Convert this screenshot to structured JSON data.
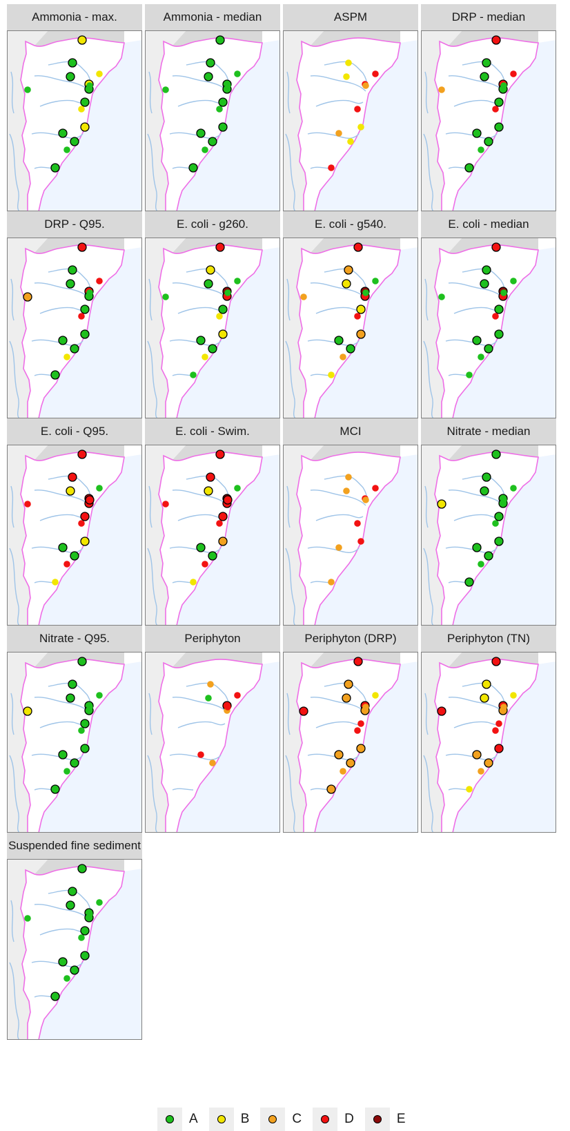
{
  "grades": [
    {
      "label": "A",
      "color": "#1ec01e"
    },
    {
      "label": "B",
      "color": "#f2e600"
    },
    {
      "label": "C",
      "color": "#f2a11f"
    },
    {
      "label": "D",
      "color": "#f21212"
    },
    {
      "label": "E",
      "color": "#8b0a0a"
    }
  ],
  "panels": [
    {
      "title": "Ammonia - max.",
      "sites": [
        {
          "s": 1,
          "g": "B"
        },
        {
          "s": 2,
          "g": "A"
        },
        {
          "s": 3,
          "g": "A"
        },
        {
          "s": 4,
          "g": "B",
          "ring": 0
        },
        {
          "s": 5,
          "g": "A",
          "ring": 0
        },
        {
          "s": 6,
          "g": "B"
        },
        {
          "s": 7,
          "g": "A"
        },
        {
          "s": 8,
          "g": "A",
          "ring": 0
        },
        {
          "s": 9,
          "g": "A"
        },
        {
          "s": 10,
          "g": "B"
        },
        {
          "s": 11,
          "g": "B",
          "ring": 0
        },
        {
          "s": 12,
          "g": "A"
        },
        {
          "s": 13,
          "g": "A"
        },
        {
          "s": 14,
          "g": "A",
          "ring": 0
        },
        {
          "s": 15,
          "g": "A"
        }
      ]
    },
    {
      "title": "Ammonia - median",
      "sites": [
        {
          "s": 1,
          "g": "A"
        },
        {
          "s": 2,
          "g": "A"
        },
        {
          "s": 3,
          "g": "A"
        },
        {
          "s": 4,
          "g": "A",
          "ring": 0
        },
        {
          "s": 5,
          "g": "A",
          "ring": 0
        },
        {
          "s": 6,
          "g": "A"
        },
        {
          "s": 7,
          "g": "A"
        },
        {
          "s": 8,
          "g": "A",
          "ring": 0
        },
        {
          "s": 9,
          "g": "A"
        },
        {
          "s": 10,
          "g": "A"
        },
        {
          "s": 11,
          "g": "A",
          "ring": 0
        },
        {
          "s": 12,
          "g": "A"
        },
        {
          "s": 13,
          "g": "A"
        },
        {
          "s": 14,
          "g": "A",
          "ring": 0
        },
        {
          "s": 15,
          "g": "A"
        }
      ]
    },
    {
      "title": "ASPM",
      "sites": [
        {
          "s": 2,
          "g": "B",
          "ring": 0
        },
        {
          "s": 3,
          "g": "B",
          "ring": 0
        },
        {
          "s": 4,
          "g": "D",
          "ring": 0
        },
        {
          "s": 6,
          "g": "D",
          "ring": 0
        },
        {
          "s": 8,
          "g": "C",
          "ring": 0
        },
        {
          "s": 10,
          "g": "B",
          "ring": 0
        },
        {
          "s": 11,
          "g": "D",
          "ring": 0
        },
        {
          "s": 12,
          "g": "C",
          "ring": 0
        },
        {
          "s": 13,
          "g": "B",
          "ring": 0
        },
        {
          "s": 15,
          "g": "D",
          "ring": 0
        }
      ]
    },
    {
      "title": "DRP - median",
      "sites": [
        {
          "s": 1,
          "g": "D"
        },
        {
          "s": 2,
          "g": "A"
        },
        {
          "s": 3,
          "g": "A"
        },
        {
          "s": 4,
          "g": "D",
          "ring": 0
        },
        {
          "s": 5,
          "g": "C",
          "ring": 0
        },
        {
          "s": 6,
          "g": "D"
        },
        {
          "s": 7,
          "g": "A"
        },
        {
          "s": 8,
          "g": "A",
          "ring": 0
        },
        {
          "s": 9,
          "g": "A"
        },
        {
          "s": 10,
          "g": "A"
        },
        {
          "s": 11,
          "g": "D",
          "ring": 0
        },
        {
          "s": 12,
          "g": "A"
        },
        {
          "s": 13,
          "g": "A"
        },
        {
          "s": 14,
          "g": "A",
          "ring": 0
        },
        {
          "s": 15,
          "g": "A"
        }
      ]
    },
    {
      "title": "DRP - Q95.",
      "sites": [
        {
          "s": 1,
          "g": "D"
        },
        {
          "s": 2,
          "g": "A"
        },
        {
          "s": 3,
          "g": "A"
        },
        {
          "s": 4,
          "g": "D",
          "ring": 0
        },
        {
          "s": 5,
          "g": "C"
        },
        {
          "s": 6,
          "g": "D"
        },
        {
          "s": 7,
          "g": "A"
        },
        {
          "s": 8,
          "g": "A",
          "ring": 0
        },
        {
          "s": 9,
          "g": "A"
        },
        {
          "s": 10,
          "g": "A"
        },
        {
          "s": 11,
          "g": "D",
          "ring": 0
        },
        {
          "s": 12,
          "g": "A"
        },
        {
          "s": 13,
          "g": "A"
        },
        {
          "s": 14,
          "g": "B",
          "ring": 0
        },
        {
          "s": 15,
          "g": "A"
        }
      ]
    },
    {
      "title": "E. coli - g260.",
      "sites": [
        {
          "s": 1,
          "g": "D"
        },
        {
          "s": 2,
          "g": "B"
        },
        {
          "s": 3,
          "g": "A"
        },
        {
          "s": 4,
          "g": "A",
          "ring": 0
        },
        {
          "s": 5,
          "g": "A",
          "ring": 0
        },
        {
          "s": 6,
          "g": "E"
        },
        {
          "s": 7,
          "g": "D"
        },
        {
          "s": 8,
          "g": "A",
          "ring": 0
        },
        {
          "s": 9,
          "g": "A"
        },
        {
          "s": 10,
          "g": "B"
        },
        {
          "s": 11,
          "g": "B",
          "ring": 0
        },
        {
          "s": 12,
          "g": "A"
        },
        {
          "s": 13,
          "g": "A"
        },
        {
          "s": 14,
          "g": "B",
          "ring": 0
        },
        {
          "s": 15,
          "g": "A",
          "ring": 0
        }
      ]
    },
    {
      "title": "E. coli - g540.",
      "sites": [
        {
          "s": 1,
          "g": "D"
        },
        {
          "s": 2,
          "g": "C"
        },
        {
          "s": 3,
          "g": "B"
        },
        {
          "s": 4,
          "g": "A",
          "ring": 0
        },
        {
          "s": 5,
          "g": "C",
          "ring": 0
        },
        {
          "s": 6,
          "g": "E"
        },
        {
          "s": 7,
          "g": "D"
        },
        {
          "s": 8,
          "g": "A",
          "ring": 0
        },
        {
          "s": 9,
          "g": "B"
        },
        {
          "s": 10,
          "g": "C"
        },
        {
          "s": 11,
          "g": "D",
          "ring": 0
        },
        {
          "s": 12,
          "g": "A"
        },
        {
          "s": 13,
          "g": "A"
        },
        {
          "s": 14,
          "g": "C",
          "ring": 0
        },
        {
          "s": 15,
          "g": "B",
          "ring": 0
        }
      ]
    },
    {
      "title": "E. coli - median",
      "sites": [
        {
          "s": 1,
          "g": "D"
        },
        {
          "s": 2,
          "g": "A"
        },
        {
          "s": 3,
          "g": "A"
        },
        {
          "s": 4,
          "g": "A",
          "ring": 0
        },
        {
          "s": 5,
          "g": "A",
          "ring": 0
        },
        {
          "s": 6,
          "g": "E"
        },
        {
          "s": 7,
          "g": "D"
        },
        {
          "s": 8,
          "g": "A",
          "ring": 0
        },
        {
          "s": 9,
          "g": "A"
        },
        {
          "s": 10,
          "g": "A"
        },
        {
          "s": 11,
          "g": "D",
          "ring": 0
        },
        {
          "s": 12,
          "g": "A"
        },
        {
          "s": 13,
          "g": "A"
        },
        {
          "s": 14,
          "g": "A",
          "ring": 0
        },
        {
          "s": 15,
          "g": "A",
          "ring": 0
        }
      ]
    },
    {
      "title": "E. coli - Q95.",
      "sites": [
        {
          "s": 1,
          "g": "D"
        },
        {
          "s": 2,
          "g": "D"
        },
        {
          "s": 3,
          "g": "B"
        },
        {
          "s": 4,
          "g": "A",
          "ring": 0
        },
        {
          "s": 5,
          "g": "D",
          "ring": 0
        },
        {
          "s": 6,
          "g": "D"
        },
        {
          "s": 7,
          "g": "D"
        },
        {
          "s": 8,
          "g": "D"
        },
        {
          "s": 9,
          "g": "D"
        },
        {
          "s": 10,
          "g": "B"
        },
        {
          "s": 11,
          "g": "D",
          "ring": 0
        },
        {
          "s": 12,
          "g": "A"
        },
        {
          "s": 13,
          "g": "A"
        },
        {
          "s": 14,
          "g": "D",
          "ring": 0
        },
        {
          "s": 15,
          "g": "B",
          "ring": 0
        }
      ]
    },
    {
      "title": "E. coli - Swim.",
      "sites": [
        {
          "s": 1,
          "g": "D"
        },
        {
          "s": 2,
          "g": "D"
        },
        {
          "s": 3,
          "g": "B"
        },
        {
          "s": 4,
          "g": "A",
          "ring": 0
        },
        {
          "s": 5,
          "g": "D",
          "ring": 0
        },
        {
          "s": 6,
          "g": "E"
        },
        {
          "s": 7,
          "g": "D"
        },
        {
          "s": 8,
          "g": "D"
        },
        {
          "s": 9,
          "g": "D"
        },
        {
          "s": 10,
          "g": "C"
        },
        {
          "s": 11,
          "g": "D",
          "ring": 0
        },
        {
          "s": 12,
          "g": "A"
        },
        {
          "s": 13,
          "g": "A"
        },
        {
          "s": 14,
          "g": "D",
          "ring": 0
        },
        {
          "s": 15,
          "g": "B",
          "ring": 0
        }
      ]
    },
    {
      "title": "MCI",
      "sites": [
        {
          "s": 2,
          "g": "C",
          "ring": 0
        },
        {
          "s": 3,
          "g": "C",
          "ring": 0
        },
        {
          "s": 4,
          "g": "D",
          "ring": 0
        },
        {
          "s": 6,
          "g": "D",
          "ring": 0
        },
        {
          "s": 8,
          "g": "C",
          "ring": 0
        },
        {
          "s": 10,
          "g": "D",
          "ring": 0
        },
        {
          "s": 11,
          "g": "D",
          "ring": 0
        },
        {
          "s": 12,
          "g": "C",
          "ring": 0
        },
        {
          "s": 15,
          "g": "C",
          "ring": 0
        }
      ]
    },
    {
      "title": "Nitrate - median",
      "sites": [
        {
          "s": 1,
          "g": "A"
        },
        {
          "s": 2,
          "g": "A"
        },
        {
          "s": 3,
          "g": "A"
        },
        {
          "s": 4,
          "g": "A",
          "ring": 0
        },
        {
          "s": 5,
          "g": "B"
        },
        {
          "s": 6,
          "g": "A"
        },
        {
          "s": 7,
          "g": "A"
        },
        {
          "s": 8,
          "g": "A",
          "ring": 0
        },
        {
          "s": 9,
          "g": "A"
        },
        {
          "s": 10,
          "g": "A"
        },
        {
          "s": 11,
          "g": "A",
          "ring": 0
        },
        {
          "s": 12,
          "g": "A"
        },
        {
          "s": 13,
          "g": "A"
        },
        {
          "s": 14,
          "g": "A",
          "ring": 0
        },
        {
          "s": 15,
          "g": "A"
        }
      ]
    },
    {
      "title": "Nitrate - Q95.",
      "sites": [
        {
          "s": 1,
          "g": "A"
        },
        {
          "s": 2,
          "g": "A"
        },
        {
          "s": 3,
          "g": "A"
        },
        {
          "s": 4,
          "g": "A",
          "ring": 0
        },
        {
          "s": 5,
          "g": "B"
        },
        {
          "s": 6,
          "g": "A"
        },
        {
          "s": 7,
          "g": "A"
        },
        {
          "s": 8,
          "g": "A",
          "ring": 0
        },
        {
          "s": 9,
          "g": "A"
        },
        {
          "s": 10,
          "g": "A"
        },
        {
          "s": 11,
          "g": "A",
          "ring": 0
        },
        {
          "s": 12,
          "g": "A"
        },
        {
          "s": 13,
          "g": "A"
        },
        {
          "s": 14,
          "g": "A",
          "ring": 0
        },
        {
          "s": 15,
          "g": "A"
        }
      ]
    },
    {
      "title": "Periphyton",
      "sites": [
        {
          "s": 2,
          "g": "C",
          "ring": 0
        },
        {
          "s": 3,
          "g": "A",
          "ring": 0
        },
        {
          "s": 4,
          "g": "D",
          "ring": 0
        },
        {
          "s": 6,
          "g": "D"
        },
        {
          "s": 7,
          "g": "C",
          "ring": 0
        },
        {
          "s": 8,
          "g": "D",
          "ring": 0
        },
        {
          "s": 12,
          "g": "D",
          "ring": 0
        },
        {
          "s": 13,
          "g": "C",
          "ring": 0
        }
      ]
    },
    {
      "title": "Periphyton (DRP)",
      "sites": [
        {
          "s": 1,
          "g": "D"
        },
        {
          "s": 2,
          "g": "C"
        },
        {
          "s": 3,
          "g": "C"
        },
        {
          "s": 4,
          "g": "B",
          "ring": 0
        },
        {
          "s": 5,
          "g": "D"
        },
        {
          "s": 6,
          "g": "D"
        },
        {
          "s": 7,
          "g": "C"
        },
        {
          "s": 8,
          "g": "C",
          "ring": 0
        },
        {
          "s": 9,
          "g": "D",
          "ring": 0
        },
        {
          "s": 10,
          "g": "C"
        },
        {
          "s": 11,
          "g": "D",
          "ring": 0
        },
        {
          "s": 12,
          "g": "C"
        },
        {
          "s": 13,
          "g": "C"
        },
        {
          "s": 14,
          "g": "C",
          "ring": 0
        },
        {
          "s": 15,
          "g": "C"
        }
      ]
    },
    {
      "title": "Periphyton (TN)",
      "sites": [
        {
          "s": 1,
          "g": "D"
        },
        {
          "s": 2,
          "g": "B"
        },
        {
          "s": 3,
          "g": "B"
        },
        {
          "s": 4,
          "g": "B",
          "ring": 0
        },
        {
          "s": 5,
          "g": "D"
        },
        {
          "s": 6,
          "g": "D"
        },
        {
          "s": 7,
          "g": "C"
        },
        {
          "s": 8,
          "g": "C",
          "ring": 0
        },
        {
          "s": 9,
          "g": "D",
          "ring": 0
        },
        {
          "s": 10,
          "g": "D"
        },
        {
          "s": 11,
          "g": "D",
          "ring": 0
        },
        {
          "s": 12,
          "g": "C"
        },
        {
          "s": 13,
          "g": "C"
        },
        {
          "s": 14,
          "g": "C",
          "ring": 0
        },
        {
          "s": 15,
          "g": "B",
          "ring": 0
        }
      ]
    },
    {
      "title": "Suspended fine sediment",
      "sites": [
        {
          "s": 1,
          "g": "A"
        },
        {
          "s": 2,
          "g": "A"
        },
        {
          "s": 3,
          "g": "A"
        },
        {
          "s": 4,
          "g": "A",
          "ring": 0
        },
        {
          "s": 5,
          "g": "A",
          "ring": 0
        },
        {
          "s": 6,
          "g": "A"
        },
        {
          "s": 7,
          "g": "A"
        },
        {
          "s": 8,
          "g": "A",
          "ring": 0
        },
        {
          "s": 9,
          "g": "A"
        },
        {
          "s": 10,
          "g": "A"
        },
        {
          "s": 11,
          "g": "A",
          "ring": 0
        },
        {
          "s": 12,
          "g": "A"
        },
        {
          "s": 13,
          "g": "A"
        },
        {
          "s": 14,
          "g": "A",
          "ring": 0
        },
        {
          "s": 15,
          "g": "A"
        }
      ]
    }
  ]
}
